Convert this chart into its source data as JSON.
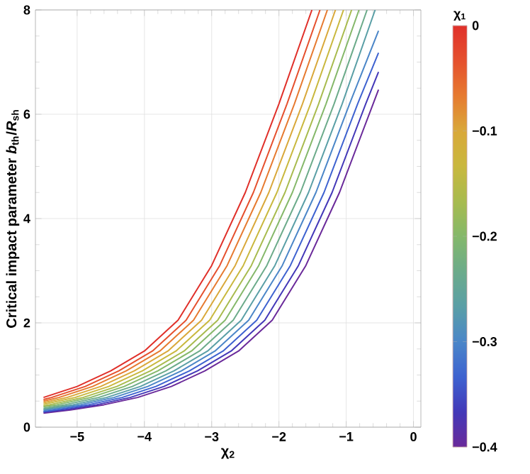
{
  "chart_data": {
    "type": "line",
    "xlabel": "χ$_{2}$",
    "ylabel": "Critical impact parameter *b*$_{th}$/*R*$_{sh}$",
    "clabel": "χ$_{1}$",
    "xlim": [
      -5.62,
      0.11
    ],
    "ylim": [
      0,
      8
    ],
    "xticks": [
      {
        "value": -5,
        "label": "−5"
      },
      {
        "value": -4,
        "label": "−4"
      },
      {
        "value": -3,
        "label": "−3"
      },
      {
        "value": -2,
        "label": "−2"
      },
      {
        "value": -1,
        "label": "−1"
      },
      0
    ],
    "yticks": [
      0,
      2,
      4,
      6,
      8
    ],
    "clim": [
      -0.4,
      0
    ],
    "cticks": [
      {
        "value": -0.4,
        "label": "−0.4"
      },
      {
        "value": -0.3,
        "label": "−0.3"
      },
      {
        "value": -0.2,
        "label": "−0.2"
      },
      {
        "value": -0.1,
        "label": "−0.1"
      },
      0
    ],
    "grid": true,
    "series": [
      {
        "color": "#6a2a9a",
        "x": [
          -5.5,
          -5.1,
          -4.6,
          -4.1,
          -3.6,
          -3.1,
          -2.6,
          -2.1,
          -1.6,
          -1.1,
          -0.6,
          -0.52
        ],
        "values": [
          0.27,
          0.33,
          0.43,
          0.57,
          0.78,
          1.08,
          1.46,
          2.05,
          3.1,
          4.5,
          6.2,
          6.47
        ]
      },
      {
        "color": "#4338b8",
        "x": [
          -5.5,
          -5.21,
          -4.71,
          -4.21,
          -3.71,
          -3.21,
          -2.71,
          -2.21,
          -1.71,
          -1.21,
          -0.71,
          -0.52
        ],
        "values": [
          0.29,
          0.33,
          0.43,
          0.57,
          0.78,
          1.08,
          1.46,
          2.05,
          3.1,
          4.5,
          6.2,
          6.81
        ]
      },
      {
        "color": "#3e62d0",
        "x": [
          -5.5,
          -5.33,
          -4.83,
          -4.33,
          -3.83,
          -3.33,
          -2.83,
          -2.33,
          -1.83,
          -1.33,
          -0.83,
          -0.52
        ],
        "values": [
          0.3,
          0.33,
          0.43,
          0.57,
          0.78,
          1.08,
          1.46,
          2.05,
          3.1,
          4.5,
          6.2,
          7.18
        ]
      },
      {
        "color": "#4b86c8",
        "x": [
          -5.5,
          -5.45,
          -4.95,
          -4.45,
          -3.95,
          -3.45,
          -2.95,
          -2.45,
          -1.95,
          -1.45,
          -0.95,
          -0.52
        ],
        "values": [
          0.32,
          0.33,
          0.43,
          0.57,
          0.78,
          1.08,
          1.46,
          2.05,
          3.1,
          4.5,
          6.2,
          7.6
        ]
      },
      {
        "color": "#5a9fa6",
        "x": [
          -5.5,
          -5.06,
          -4.56,
          -4.06,
          -3.56,
          -3.06,
          -2.56,
          -2.06,
          -1.56,
          -1.06,
          -0.57
        ],
        "values": [
          0.34,
          0.43,
          0.57,
          0.78,
          1.08,
          1.46,
          2.05,
          3.1,
          4.5,
          6.2,
          8
        ]
      },
      {
        "color": "#6cab8a",
        "x": [
          -5.5,
          -5.18,
          -4.68,
          -4.18,
          -3.68,
          -3.18,
          -2.68,
          -2.18,
          -1.68,
          -1.18,
          -0.69
        ],
        "values": [
          0.36,
          0.43,
          0.57,
          0.78,
          1.08,
          1.46,
          2.05,
          3.1,
          4.5,
          6.2,
          8
        ]
      },
      {
        "color": "#85b86a",
        "x": [
          -5.5,
          -5.3,
          -4.8,
          -4.3,
          -3.8,
          -3.3,
          -2.8,
          -2.3,
          -1.8,
          -1.3,
          -0.81
        ],
        "values": [
          0.39,
          0.43,
          0.57,
          0.78,
          1.08,
          1.46,
          2.05,
          3.1,
          4.5,
          6.2,
          8
        ]
      },
      {
        "color": "#a8bb4e",
        "x": [
          -5.5,
          -5.41,
          -4.91,
          -4.41,
          -3.91,
          -3.41,
          -2.91,
          -2.41,
          -1.91,
          -1.41,
          -0.92
        ],
        "values": [
          0.41,
          0.43,
          0.57,
          0.78,
          1.08,
          1.46,
          2.05,
          3.1,
          4.5,
          6.2,
          8
        ]
      },
      {
        "color": "#c9b83e",
        "x": [
          -5.5,
          -5.03,
          -4.53,
          -4.03,
          -3.53,
          -3.03,
          -2.53,
          -2.03,
          -1.53,
          -1.04
        ],
        "values": [
          0.44,
          0.57,
          0.78,
          1.08,
          1.46,
          2.05,
          3.1,
          4.5,
          6.2,
          8
        ]
      },
      {
        "color": "#d9a83a",
        "x": [
          -5.5,
          -5.15,
          -4.65,
          -4.15,
          -3.65,
          -3.15,
          -2.65,
          -2.15,
          -1.65,
          -1.16
        ],
        "values": [
          0.47,
          0.57,
          0.78,
          1.08,
          1.46,
          2.05,
          3.1,
          4.5,
          6.2,
          8
        ]
      },
      {
        "color": "#e67a30",
        "x": [
          -5.5,
          -5.27,
          -4.77,
          -4.27,
          -3.77,
          -3.27,
          -2.77,
          -2.27,
          -1.77,
          -1.28
        ],
        "values": [
          0.5,
          0.57,
          0.78,
          1.08,
          1.46,
          2.05,
          3.1,
          4.5,
          6.2,
          8
        ]
      },
      {
        "color": "#e5502e",
        "x": [
          -5.5,
          -5.38,
          -4.88,
          -4.38,
          -3.88,
          -3.38,
          -2.88,
          -2.38,
          -1.88,
          -1.39
        ],
        "values": [
          0.53,
          0.57,
          0.78,
          1.08,
          1.46,
          2.05,
          3.1,
          4.5,
          6.2,
          8
        ]
      },
      {
        "color": "#e0302a",
        "x": [
          -5.5,
          -5,
          -4.5,
          -4,
          -3.5,
          -3,
          -2.5,
          -2,
          -1.51
        ],
        "values": [
          0.57,
          0.78,
          1.08,
          1.46,
          2.05,
          3.1,
          4.5,
          6.2,
          8
        ]
      }
    ]
  }
}
